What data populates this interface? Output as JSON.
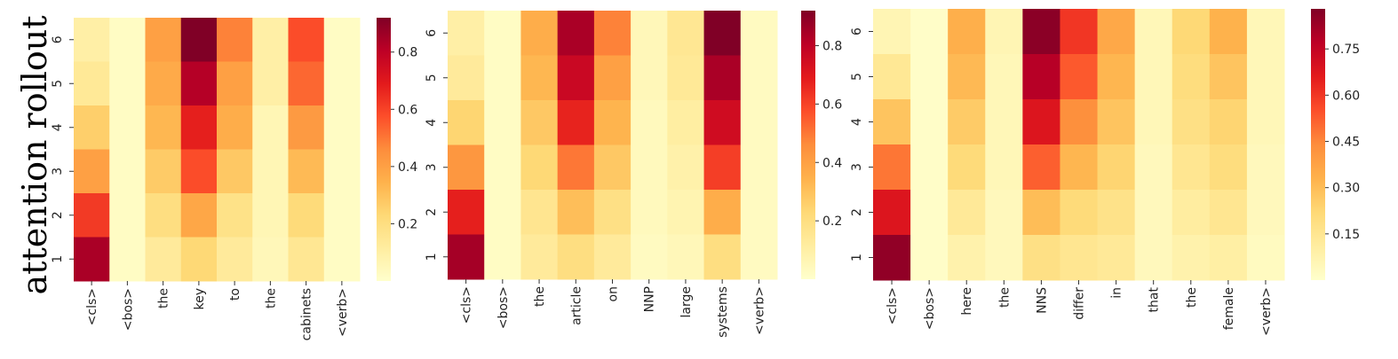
{
  "figure_label": "attention rollout",
  "colormap": {
    "name": "YlOrRd",
    "stops": [
      "#ffffcc",
      "#ffeda0",
      "#fed976",
      "#feb24c",
      "#fd8d3c",
      "#fc4e2a",
      "#e31a1c",
      "#bd0026",
      "#800026"
    ]
  },
  "chart_data": [
    {
      "type": "heatmap",
      "xlabels": [
        "<cls>",
        "<bos>",
        "the",
        "key",
        "to",
        "the",
        "cabinets",
        "<verb>"
      ],
      "ylabels": [
        "6",
        "5",
        "4",
        "3",
        "2",
        "1"
      ],
      "values": [
        [
          0.1,
          0.02,
          0.4,
          0.92,
          0.48,
          0.1,
          0.58,
          0.02
        ],
        [
          0.14,
          0.02,
          0.37,
          0.82,
          0.4,
          0.1,
          0.53,
          0.02
        ],
        [
          0.26,
          0.02,
          0.33,
          0.68,
          0.36,
          0.06,
          0.42,
          0.02
        ],
        [
          0.4,
          0.02,
          0.27,
          0.58,
          0.28,
          0.06,
          0.32,
          0.02
        ],
        [
          0.62,
          0.02,
          0.2,
          0.38,
          0.18,
          0.06,
          0.22,
          0.02
        ],
        [
          0.84,
          0.02,
          0.13,
          0.23,
          0.13,
          0.05,
          0.15,
          0.02
        ]
      ],
      "vmin": 0,
      "vmax": 0.92,
      "colorbar_ticks": [
        "0.2",
        "0.4",
        "0.6",
        "0.8"
      ]
    },
    {
      "type": "heatmap",
      "xlabels": [
        "<cls>",
        "<bos>",
        "the",
        "article",
        "on",
        "NNP",
        "large",
        "systems",
        "<verb>"
      ],
      "ylabels": [
        "6",
        "5",
        "4",
        "3",
        "2",
        "1"
      ],
      "values": [
        [
          0.1,
          0.02,
          0.36,
          0.84,
          0.48,
          0.05,
          0.15,
          0.94,
          0.03
        ],
        [
          0.13,
          0.02,
          0.33,
          0.77,
          0.4,
          0.05,
          0.14,
          0.84,
          0.03
        ],
        [
          0.24,
          0.02,
          0.28,
          0.67,
          0.34,
          0.04,
          0.11,
          0.75,
          0.03
        ],
        [
          0.43,
          0.02,
          0.23,
          0.5,
          0.28,
          0.04,
          0.09,
          0.61,
          0.03
        ],
        [
          0.68,
          0.02,
          0.16,
          0.31,
          0.19,
          0.04,
          0.07,
          0.36,
          0.03
        ],
        [
          0.85,
          0.02,
          0.13,
          0.2,
          0.13,
          0.03,
          0.05,
          0.2,
          0.03
        ]
      ],
      "vmin": 0,
      "vmax": 0.92,
      "colorbar_ticks": [
        "0.2",
        "0.4",
        "0.6",
        "0.8"
      ]
    },
    {
      "type": "heatmap",
      "xlabels": [
        "<cls>",
        "<bos>",
        "here",
        "the",
        "NNS",
        "differ",
        "in",
        "that",
        "the",
        "female",
        "<verb>"
      ],
      "ylabels": [
        "6",
        "5",
        "4",
        "3",
        "2",
        "1"
      ],
      "values": [
        [
          0.06,
          0.01,
          0.34,
          0.06,
          0.86,
          0.6,
          0.36,
          0.05,
          0.22,
          0.33,
          0.05
        ],
        [
          0.14,
          0.01,
          0.31,
          0.05,
          0.78,
          0.53,
          0.32,
          0.05,
          0.2,
          0.28,
          0.05
        ],
        [
          0.28,
          0.01,
          0.26,
          0.05,
          0.68,
          0.43,
          0.28,
          0.05,
          0.18,
          0.23,
          0.05
        ],
        [
          0.48,
          0.01,
          0.21,
          0.05,
          0.52,
          0.32,
          0.23,
          0.04,
          0.15,
          0.2,
          0.04
        ],
        [
          0.68,
          0.01,
          0.13,
          0.04,
          0.3,
          0.21,
          0.17,
          0.04,
          0.11,
          0.15,
          0.04
        ],
        [
          0.85,
          0.01,
          0.08,
          0.04,
          0.18,
          0.15,
          0.13,
          0.04,
          0.08,
          0.1,
          0.03
        ]
      ],
      "vmin": 0,
      "vmax": 0.88,
      "colorbar_ticks": [
        "0.15",
        "0.30",
        "0.45",
        "0.60",
        "0.75"
      ]
    }
  ]
}
